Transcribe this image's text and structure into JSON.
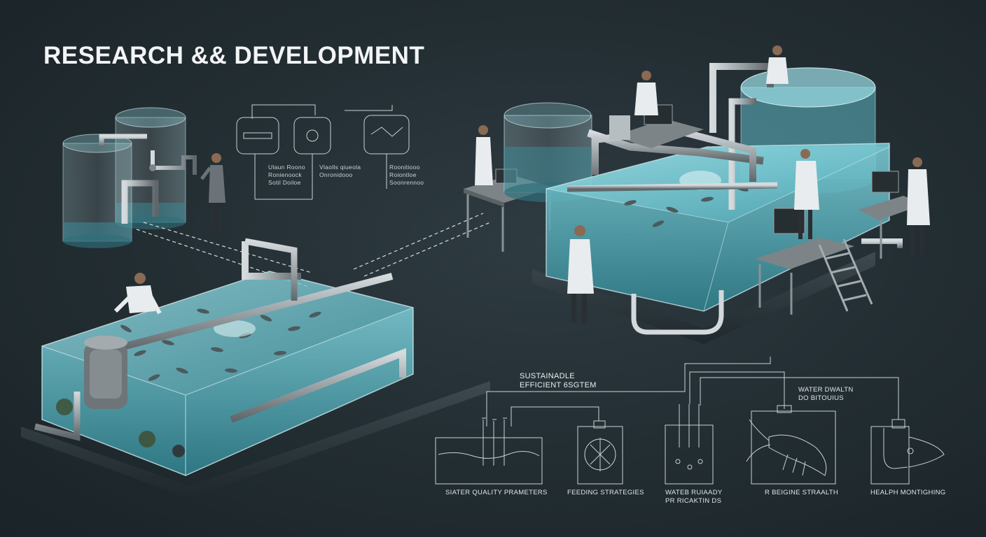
{
  "header": {
    "title": "RESEARCH && DEVELOPMENT"
  },
  "top_schematic": {
    "labels": [
      "Ulaun Roono\nRonienoock\nSotil Doiloe",
      "Vlaolls qiueola\nOnronidooo",
      "Roonitiooo\nRoiontloe\nSoonrennoo"
    ]
  },
  "bottom_schematic": {
    "system_label": "SUSTAINADLE\nEFFICIENT 6SGTEM",
    "modules": [
      {
        "label": "SIATER QUALITY PRAMETERS"
      },
      {
        "label": "FEEDING STRATEGIES"
      },
      {
        "label": "WATEB RUIAADY\nPR RICAKTIN DS",
        "top_label": "WATER DWALTN\nDO BITOUIUS"
      },
      {
        "label": "R BEIGINE STRAALTH"
      },
      {
        "label": "HEALPH MONTIGHING"
      }
    ]
  },
  "colors": {
    "background": "#222d32",
    "water": "#5fb8c4",
    "glass": "#9fd0d8",
    "pipe": "#a7aeb2",
    "lab_coat": "#e8ecee",
    "line": "#c9d2d5"
  }
}
